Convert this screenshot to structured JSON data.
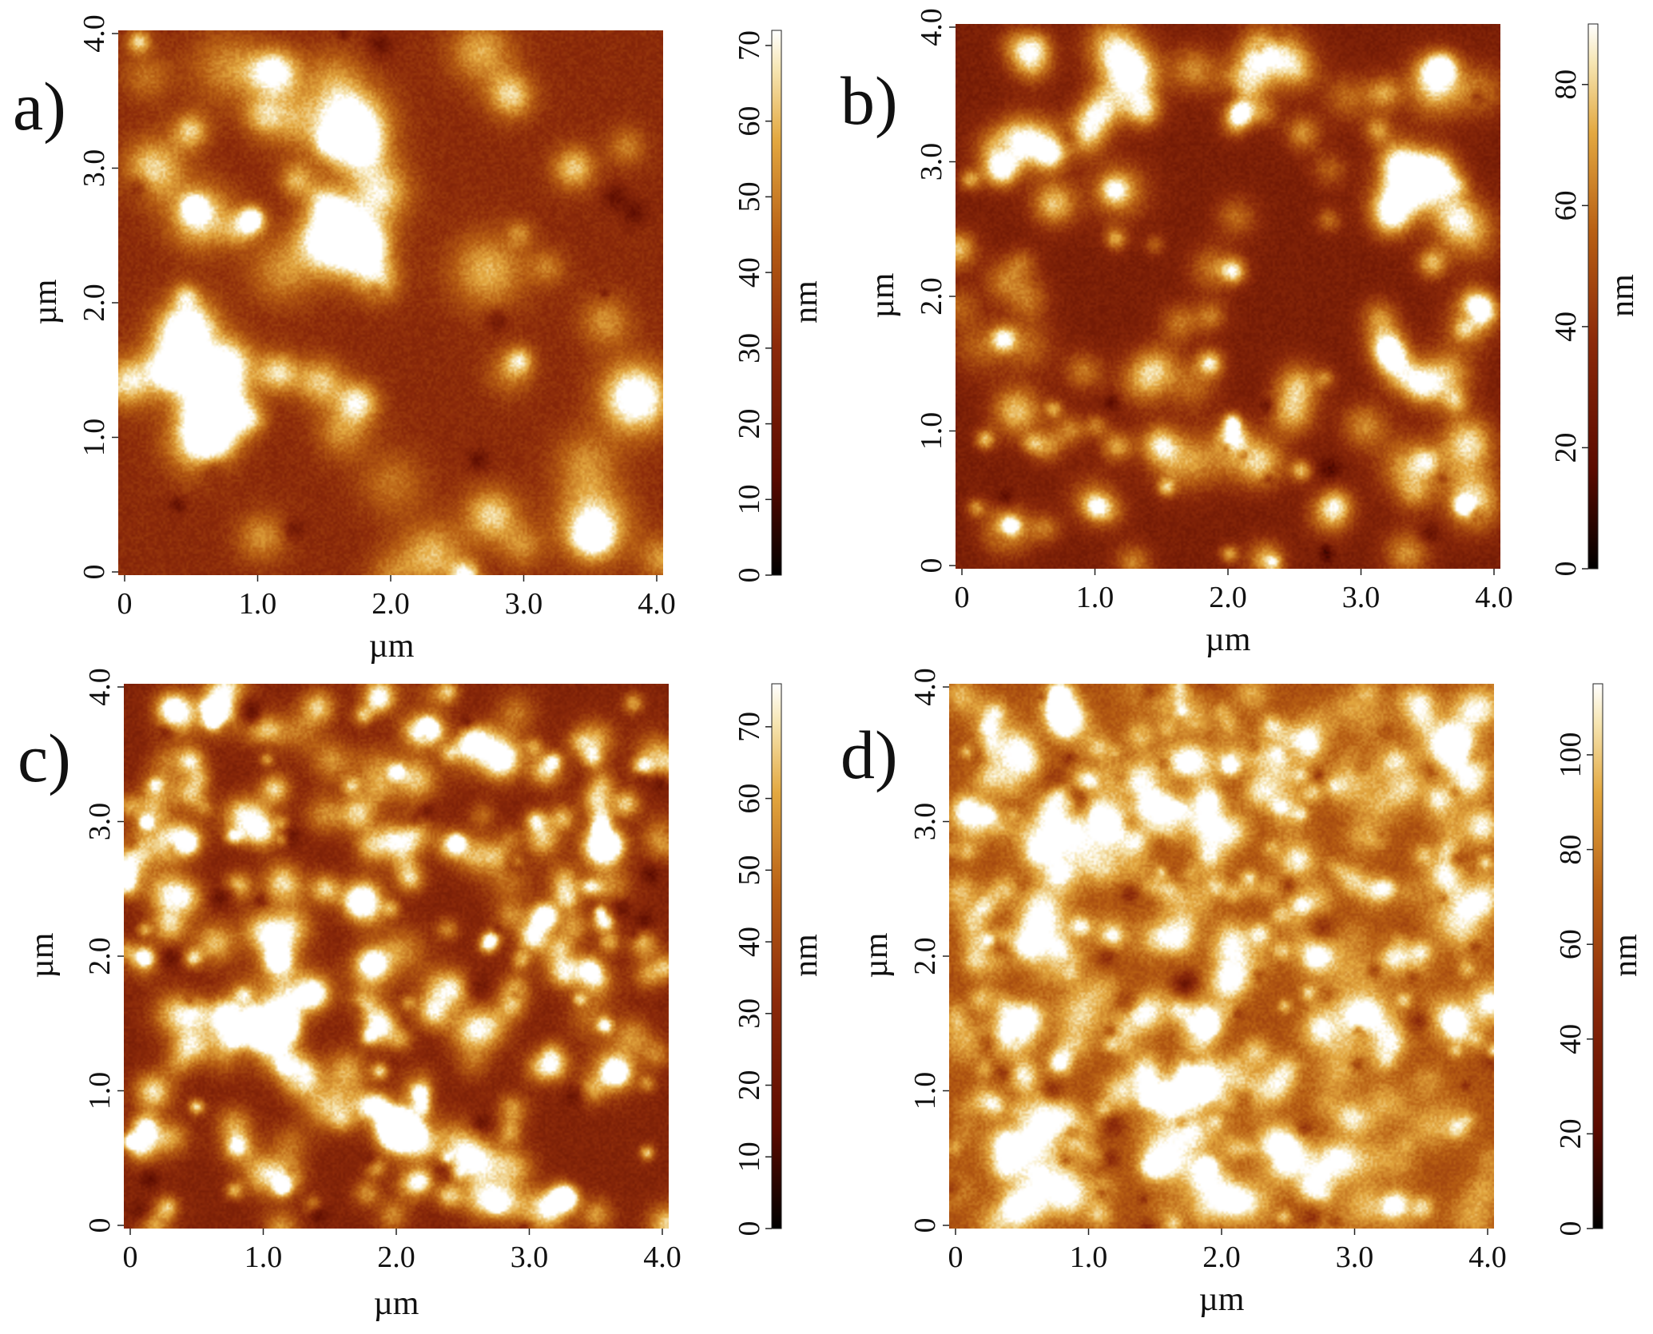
{
  "colors": {
    "colormap": [
      "#000000",
      "#5a0a00",
      "#8c2a0a",
      "#b86014",
      "#e3a840",
      "#f6e6b4",
      "#ffffff"
    ],
    "background": "#ffffff",
    "text": "#111111"
  },
  "panels": [
    {
      "label": "a)",
      "x_ticks": [
        "0",
        "1.0",
        "2.0",
        "3.0",
        "4.0"
      ],
      "y_ticks": [
        "0",
        "1.0",
        "2.0",
        "3.0",
        "4.0"
      ],
      "x_unit": "µm",
      "y_unit": "µm",
      "colorbar": {
        "unit": "nm",
        "ticks": [
          "0",
          "10",
          "20",
          "30",
          "40",
          "50",
          "60",
          "70"
        ],
        "range": [
          0,
          72
        ]
      },
      "image": {
        "base": 0.42,
        "grain_level": 0.93,
        "grains": 68,
        "size": 0.9,
        "seed": 11
      }
    },
    {
      "label": "b)",
      "x_ticks": [
        "0",
        "1.0",
        "2.0",
        "3.0",
        "4.0"
      ],
      "y_ticks": [
        "0",
        "1.0",
        "2.0",
        "3.0",
        "4.0"
      ],
      "x_unit": "µm",
      "y_unit": "µm",
      "colorbar": {
        "unit": "nm",
        "ticks": [
          "0",
          "20",
          "40",
          "60",
          "80"
        ],
        "range": [
          0,
          90
        ]
      },
      "image": {
        "base": 0.34,
        "grain_level": 0.86,
        "grains": 120,
        "size": 0.7,
        "seed": 23
      }
    },
    {
      "label": "c)",
      "x_ticks": [
        "0",
        "1.0",
        "2.0",
        "3.0",
        "4.0"
      ],
      "y_ticks": [
        "0",
        "1.0",
        "2.0",
        "3.0",
        "4.0"
      ],
      "x_unit": "µm",
      "y_unit": "µm",
      "colorbar": {
        "unit": "nm",
        "ticks": [
          "0",
          "10",
          "20",
          "30",
          "40",
          "50",
          "60",
          "70"
        ],
        "range": [
          0,
          76
        ]
      },
      "image": {
        "base": 0.38,
        "grain_level": 0.88,
        "grains": 260,
        "size": 0.55,
        "seed": 37
      }
    },
    {
      "label": "d)",
      "x_ticks": [
        "0",
        "1.0",
        "2.0",
        "3.0",
        "4.0"
      ],
      "y_ticks": [
        "0",
        "1.0",
        "2.0",
        "3.0",
        "4.0"
      ],
      "x_unit": "µm",
      "y_unit": "µm",
      "colorbar": {
        "unit": "nm",
        "ticks": [
          "0",
          "20",
          "40",
          "60",
          "80",
          "100"
        ],
        "range": [
          0,
          115
        ]
      },
      "image": {
        "base": 0.56,
        "grain_level": 0.83,
        "grains": 420,
        "size": 0.55,
        "seed": 53
      }
    }
  ]
}
